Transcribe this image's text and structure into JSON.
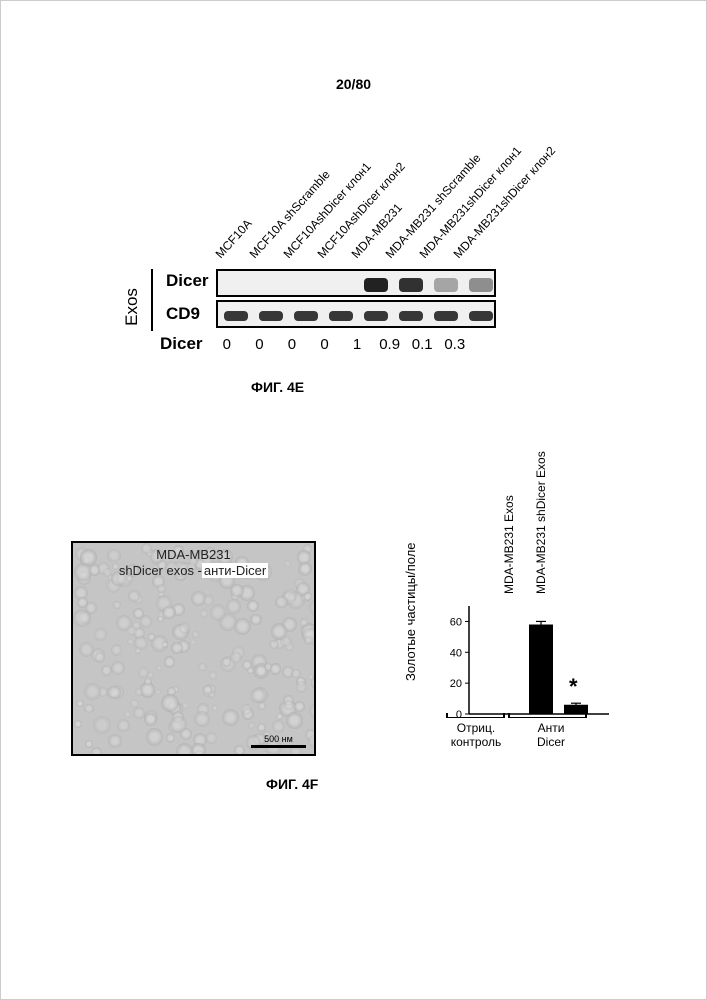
{
  "page_number": "20/80",
  "fig4e": {
    "caption": "ФИГ. 4E",
    "lane_labels": [
      "MCF10A",
      "MCF10A shScramble",
      "MCF10AshDicer клон1",
      "MCF10AshDicer клон2",
      "MDA-MB231",
      "MDA-MB231 shScramble",
      "MDA-MB231shDicer клон1",
      "MDA-MB231shDicer клон2"
    ],
    "row_labels": {
      "dicer": "Dicer",
      "cd9": "CD9",
      "exos": "Exos",
      "dicer_bottom": "Dicer"
    },
    "dicer_values": [
      "0",
      "0",
      "0",
      "0",
      "1",
      "0.9",
      "0.1",
      "0.3"
    ],
    "dicer_band_intensities": [
      0,
      0,
      0,
      0,
      1.0,
      0.9,
      0.15,
      0.3
    ],
    "cd9_band_intensities": [
      0.9,
      0.9,
      0.9,
      0.9,
      0.9,
      0.9,
      0.9,
      0.9
    ],
    "lane_width": 35,
    "band_color": "#222",
    "blot_bg": "#f0efed"
  },
  "fig4f": {
    "caption": "ФИГ. 4F",
    "micrograph": {
      "title_line1": "MDA-MB231",
      "title_line2": "shDicer exos -",
      "title_highlight": "анти-Dicer",
      "scale_text": "500 нм"
    },
    "chart": {
      "ylabel": "Золотые частицы/поле",
      "xgroups": [
        {
          "label_line1": "Отриц.",
          "label_line2": "контроль"
        },
        {
          "label_line1": "Анти",
          "label_line2": "Dicer"
        }
      ],
      "series_labels": [
        "MDA-MB231 Exos",
        "MDA-MB231 shDicer Exos"
      ],
      "values": [
        58,
        6
      ],
      "errors": [
        2,
        1
      ],
      "ymax": 70,
      "ytick_step": 20,
      "bar_color": "#000000",
      "axis_color": "#000000",
      "significance_marker": "*"
    }
  }
}
